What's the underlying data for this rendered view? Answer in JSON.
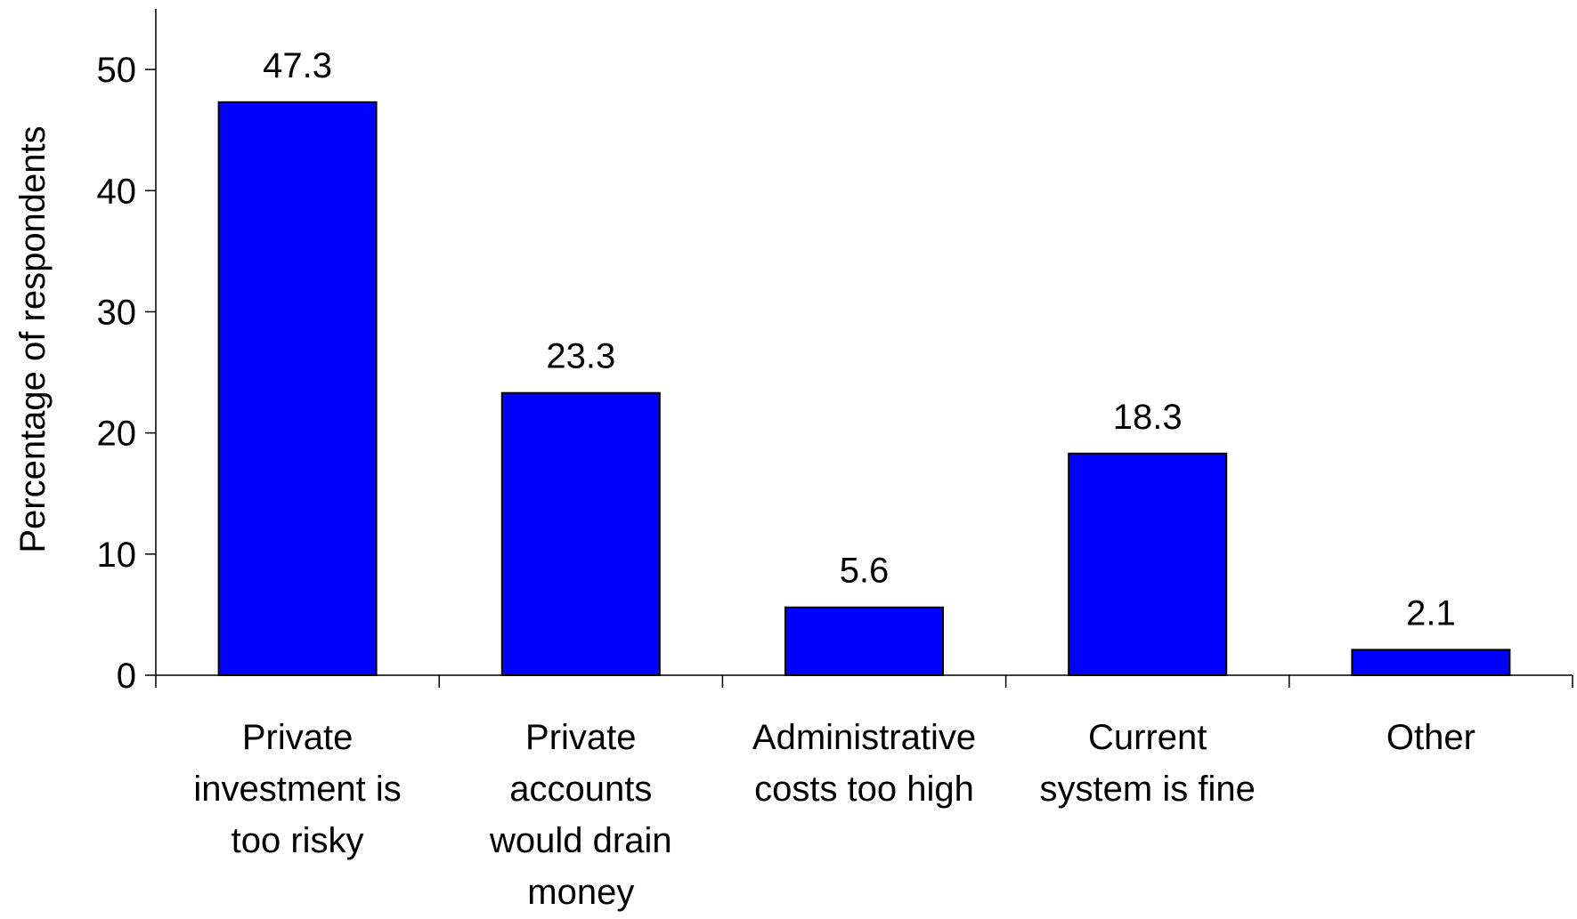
{
  "chart_data": {
    "type": "bar",
    "title": "",
    "xlabel": "",
    "ylabel": "Percentage of respondents",
    "ylim": [
      0,
      55
    ],
    "yticks": [
      0,
      10,
      20,
      30,
      40,
      50
    ],
    "grid": false,
    "legend": "none",
    "bar_color": "#0000FF",
    "bar_edge_color": "#000000",
    "categories": [
      [
        "Private",
        "investment is",
        "too risky"
      ],
      [
        "Private",
        "accounts",
        "would drain",
        "money"
      ],
      [
        "Administrative",
        "costs too high"
      ],
      [
        "Current",
        "system is  fine"
      ],
      [
        "Other"
      ]
    ],
    "values": [
      47.3,
      23.3,
      5.6,
      18.3,
      2.1
    ],
    "value_labels": [
      "47.3",
      "23.3",
      "5.6",
      "18.3",
      "2.1"
    ]
  }
}
